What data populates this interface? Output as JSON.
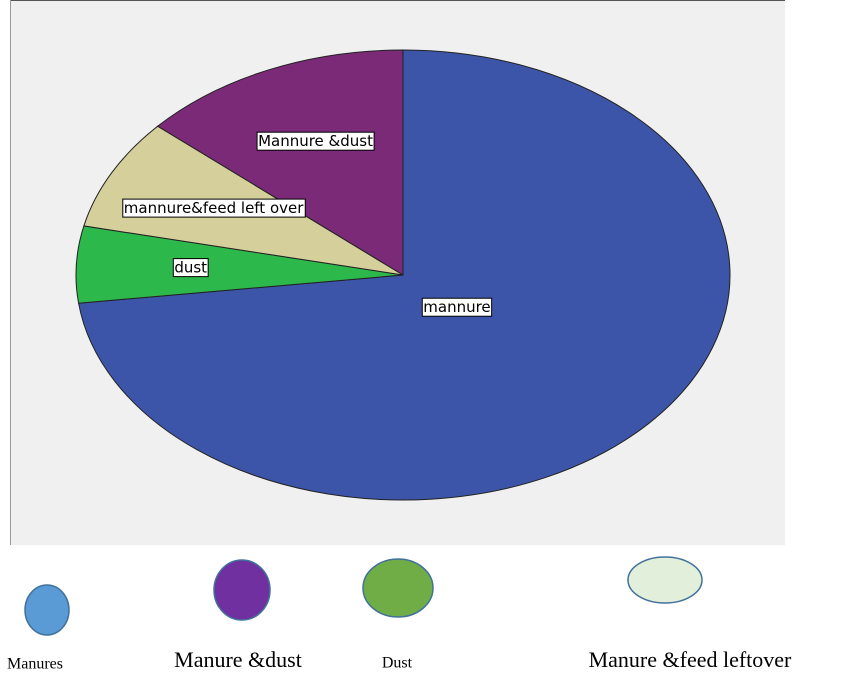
{
  "chart_data": {
    "type": "pie",
    "categories": [
      "mannure",
      "dust",
      "mannure&feed left over",
      "Mannure &dust"
    ],
    "values": [
      73,
      5.5,
      8,
      13.5
    ],
    "colors": [
      "#3d55a9",
      "#2db84b",
      "#d5cf9b",
      "#7b2a77"
    ],
    "legend": [
      {
        "label": "Manures",
        "color": "#5b9bd5"
      },
      {
        "label": "Manure &dust",
        "color": "#7030a0"
      },
      {
        "label": "Dust",
        "color": "#70ad47"
      },
      {
        "label": "Manure &feed leftover",
        "color": "#e2efda"
      }
    ]
  }
}
